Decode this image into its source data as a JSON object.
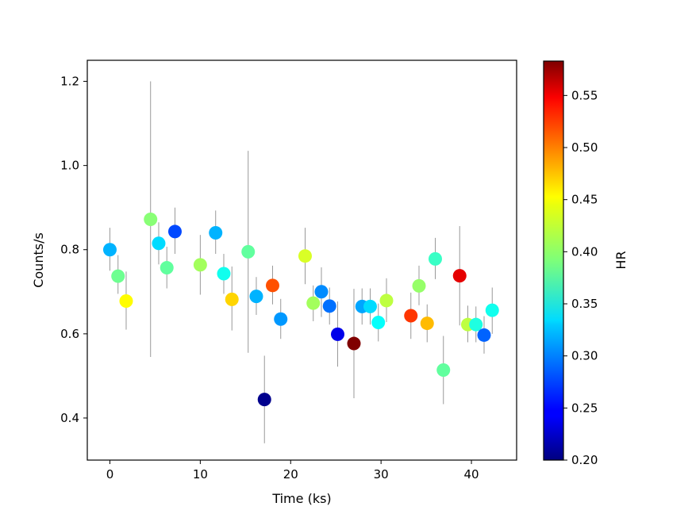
{
  "chart_data": {
    "type": "scatter",
    "title": "",
    "xlabel": "Time (ks)",
    "ylabel": "Counts/s",
    "xlim": [
      -2.5,
      45
    ],
    "ylim": [
      0.3,
      1.25
    ],
    "xticks": [
      0,
      10,
      20,
      30,
      40
    ],
    "yticks": [
      0.4,
      0.6,
      0.8,
      1.0,
      1.2
    ],
    "xtick_labels": [
      "0",
      "10",
      "20",
      "30",
      "40"
    ],
    "ytick_labels": [
      "0.4",
      "0.6",
      "0.8",
      "1.0",
      "1.2"
    ],
    "colorbar": {
      "label": "HR",
      "colormap": "jet",
      "range": [
        0.2,
        0.583
      ],
      "ticks": [
        0.2,
        0.25,
        0.3,
        0.35,
        0.4,
        0.45,
        0.5,
        0.55
      ],
      "tick_labels": [
        "0.20",
        "0.25",
        "0.30",
        "0.35",
        "0.40",
        "0.45",
        "0.50",
        "0.55"
      ]
    },
    "errorbar_color": "#999999",
    "points": [
      {
        "x": 0.0,
        "y": 0.8,
        "lo": 0.75,
        "hi": 0.852,
        "hr": 0.315
      },
      {
        "x": 0.9,
        "y": 0.737,
        "lo": 0.695,
        "hi": 0.787,
        "hr": 0.385
      },
      {
        "x": 1.8,
        "y": 0.678,
        "lo": 0.61,
        "hi": 0.748,
        "hr": 0.44
      },
      {
        "x": 4.5,
        "y": 0.872,
        "lo": 0.545,
        "hi": 1.2,
        "hr": 0.395
      },
      {
        "x": 5.4,
        "y": 0.815,
        "lo": 0.765,
        "hi": 0.865,
        "hr": 0.33
      },
      {
        "x": 6.3,
        "y": 0.757,
        "lo": 0.708,
        "hi": 0.807,
        "hr": 0.38
      },
      {
        "x": 7.2,
        "y": 0.843,
        "lo": 0.79,
        "hi": 0.9,
        "hr": 0.275
      },
      {
        "x": 10.0,
        "y": 0.764,
        "lo": 0.693,
        "hi": 0.835,
        "hr": 0.405
      },
      {
        "x": 11.7,
        "y": 0.84,
        "lo": 0.79,
        "hi": 0.893,
        "hr": 0.315
      },
      {
        "x": 12.6,
        "y": 0.743,
        "lo": 0.695,
        "hi": 0.79,
        "hr": 0.35
      },
      {
        "x": 13.5,
        "y": 0.682,
        "lo": 0.608,
        "hi": 0.76,
        "hr": 0.455
      },
      {
        "x": 15.3,
        "y": 0.795,
        "lo": 0.555,
        "hi": 1.035,
        "hr": 0.38
      },
      {
        "x": 16.2,
        "y": 0.689,
        "lo": 0.645,
        "hi": 0.735,
        "hr": 0.315
      },
      {
        "x": 17.1,
        "y": 0.444,
        "lo": 0.34,
        "hi": 0.548,
        "hr": 0.205
      },
      {
        "x": 18.0,
        "y": 0.715,
        "lo": 0.67,
        "hi": 0.762,
        "hr": 0.505
      },
      {
        "x": 18.9,
        "y": 0.635,
        "lo": 0.588,
        "hi": 0.683,
        "hr": 0.305
      },
      {
        "x": 21.6,
        "y": 0.785,
        "lo": 0.718,
        "hi": 0.852,
        "hr": 0.425
      },
      {
        "x": 22.5,
        "y": 0.673,
        "lo": 0.63,
        "hi": 0.715,
        "hr": 0.405
      },
      {
        "x": 23.4,
        "y": 0.7,
        "lo": 0.64,
        "hi": 0.758,
        "hr": 0.3
      },
      {
        "x": 24.3,
        "y": 0.666,
        "lo": 0.622,
        "hi": 0.71,
        "hr": 0.29
      },
      {
        "x": 25.2,
        "y": 0.599,
        "lo": 0.522,
        "hi": 0.677,
        "hr": 0.24
      },
      {
        "x": 27.0,
        "y": 0.577,
        "lo": 0.447,
        "hi": 0.707,
        "hr": 0.583
      },
      {
        "x": 27.9,
        "y": 0.665,
        "lo": 0.622,
        "hi": 0.708,
        "hr": 0.31
      },
      {
        "x": 28.8,
        "y": 0.665,
        "lo": 0.622,
        "hi": 0.708,
        "hr": 0.33
      },
      {
        "x": 29.7,
        "y": 0.627,
        "lo": 0.582,
        "hi": 0.672,
        "hr": 0.345
      },
      {
        "x": 30.6,
        "y": 0.679,
        "lo": 0.628,
        "hi": 0.732,
        "hr": 0.415
      },
      {
        "x": 33.3,
        "y": 0.643,
        "lo": 0.588,
        "hi": 0.698,
        "hr": 0.515
      },
      {
        "x": 34.2,
        "y": 0.714,
        "lo": 0.668,
        "hi": 0.762,
        "hr": 0.4
      },
      {
        "x": 35.1,
        "y": 0.625,
        "lo": 0.58,
        "hi": 0.67,
        "hr": 0.465
      },
      {
        "x": 36.0,
        "y": 0.778,
        "lo": 0.73,
        "hi": 0.828,
        "hr": 0.365
      },
      {
        "x": 36.9,
        "y": 0.514,
        "lo": 0.433,
        "hi": 0.595,
        "hr": 0.38
      },
      {
        "x": 38.7,
        "y": 0.738,
        "lo": 0.62,
        "hi": 0.856,
        "hr": 0.545
      },
      {
        "x": 39.6,
        "y": 0.622,
        "lo": 0.58,
        "hi": 0.667,
        "hr": 0.415
      },
      {
        "x": 40.5,
        "y": 0.622,
        "lo": 0.58,
        "hi": 0.665,
        "hr": 0.355
      },
      {
        "x": 41.4,
        "y": 0.597,
        "lo": 0.553,
        "hi": 0.642,
        "hr": 0.285
      },
      {
        "x": 42.3,
        "y": 0.656,
        "lo": 0.6,
        "hi": 0.71,
        "hr": 0.35
      }
    ]
  }
}
